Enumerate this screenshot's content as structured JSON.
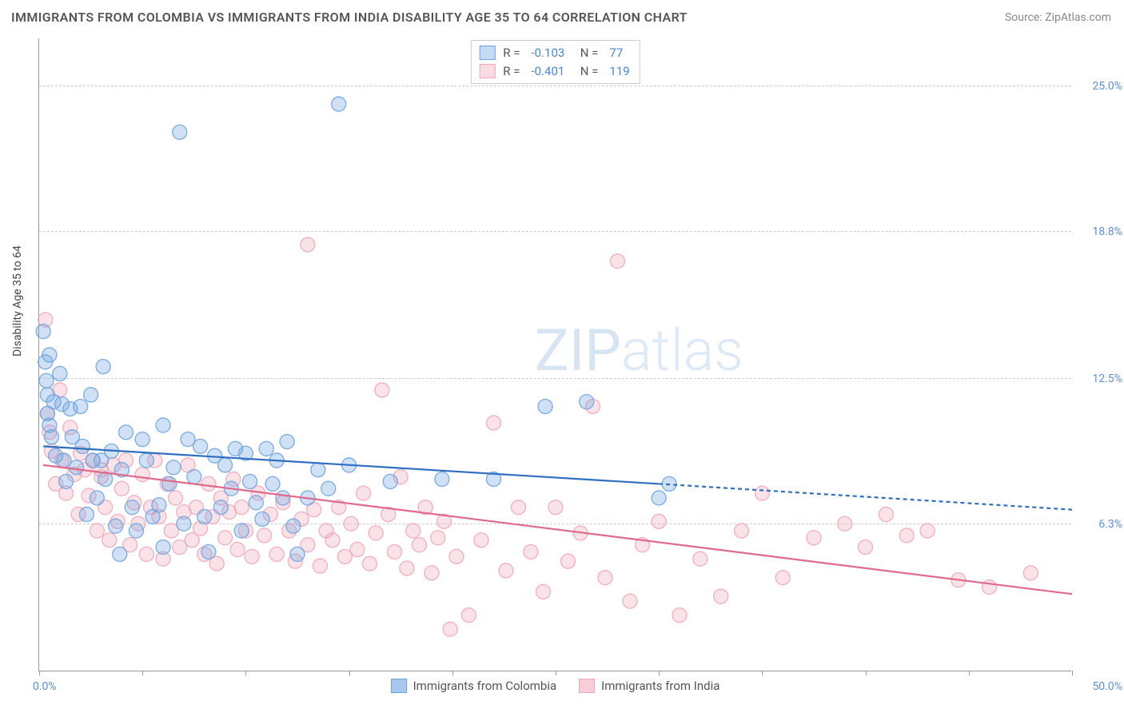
{
  "title": "IMMIGRANTS FROM COLOMBIA VS IMMIGRANTS FROM INDIA DISABILITY AGE 35 TO 64 CORRELATION CHART",
  "source": "Source: ZipAtlas.com",
  "yaxis_title": "Disability Age 35 to 64",
  "watermark_bold": "ZIP",
  "watermark_thin": "atlas",
  "chart": {
    "type": "scatter+regression",
    "background_color": "#ffffff",
    "grid_color": "#cccccc",
    "grid_dash": "4 4",
    "axis_color": "#999999",
    "xlim": [
      0,
      50
    ],
    "ylim": [
      0,
      27
    ],
    "x_axis_labels": {
      "left": "0.0%",
      "right": "50.0%"
    },
    "x_ticks_at": [
      0,
      5,
      10,
      15,
      20,
      25,
      30,
      35,
      40,
      45,
      50
    ],
    "y_ticks": [
      {
        "value": 6.3,
        "label": "6.3%"
      },
      {
        "value": 12.5,
        "label": "12.5%"
      },
      {
        "value": 18.8,
        "label": "18.8%"
      },
      {
        "value": 25.0,
        "label": "25.0%"
      }
    ],
    "tick_label_color": "#5b8fd8",
    "tick_label_fontsize": 14,
    "marker_radius": 9,
    "marker_fill_opacity": 0.32,
    "marker_stroke_opacity": 0.85,
    "marker_stroke_width": 1.4,
    "line_width": 2.2,
    "line_dash_extrap": "5 4",
    "series": [
      {
        "id": "colombia",
        "label": "Immigrants from Colombia",
        "color": "#6ea3e0",
        "line_color": "#2f6fc2",
        "R": "-0.103",
        "N": "77",
        "regression": {
          "x1": 0.2,
          "y1": 9.6,
          "x2": 30,
          "y2": 8.0,
          "extrap_x2": 50,
          "extrap_y2": 6.9
        },
        "points": [
          [
            0.2,
            14.5
          ],
          [
            0.3,
            13.2
          ],
          [
            0.35,
            12.4
          ],
          [
            0.4,
            11.8
          ],
          [
            0.4,
            11.0
          ],
          [
            0.5,
            10.5
          ],
          [
            0.5,
            13.5
          ],
          [
            0.6,
            10.0
          ],
          [
            0.7,
            11.5
          ],
          [
            0.8,
            9.2
          ],
          [
            1.0,
            12.7
          ],
          [
            1.1,
            11.4
          ],
          [
            1.2,
            9.0
          ],
          [
            1.3,
            8.1
          ],
          [
            1.5,
            11.2
          ],
          [
            1.6,
            10.0
          ],
          [
            1.8,
            8.7
          ],
          [
            2.0,
            11.3
          ],
          [
            2.1,
            9.6
          ],
          [
            2.3,
            6.7
          ],
          [
            2.5,
            11.8
          ],
          [
            2.6,
            9.0
          ],
          [
            2.8,
            7.4
          ],
          [
            3.0,
            9.0
          ],
          [
            3.1,
            13.0
          ],
          [
            3.2,
            8.2
          ],
          [
            3.5,
            9.4
          ],
          [
            3.7,
            6.2
          ],
          [
            3.9,
            5.0
          ],
          [
            4.0,
            8.6
          ],
          [
            4.2,
            10.2
          ],
          [
            4.5,
            7.0
          ],
          [
            4.7,
            6.0
          ],
          [
            5.0,
            9.9
          ],
          [
            5.2,
            9.0
          ],
          [
            5.5,
            6.6
          ],
          [
            5.8,
            7.1
          ],
          [
            6.0,
            5.3
          ],
          [
            6.0,
            10.5
          ],
          [
            6.3,
            8.0
          ],
          [
            6.5,
            8.7
          ],
          [
            6.8,
            23.0
          ],
          [
            7.0,
            6.3
          ],
          [
            7.2,
            9.9
          ],
          [
            7.5,
            8.3
          ],
          [
            7.8,
            9.6
          ],
          [
            8.0,
            6.6
          ],
          [
            8.2,
            5.1
          ],
          [
            8.5,
            9.2
          ],
          [
            8.8,
            7.0
          ],
          [
            9.0,
            8.8
          ],
          [
            9.3,
            7.8
          ],
          [
            9.5,
            9.5
          ],
          [
            9.8,
            6.0
          ],
          [
            10.0,
            9.3
          ],
          [
            10.2,
            8.1
          ],
          [
            10.5,
            7.2
          ],
          [
            10.8,
            6.5
          ],
          [
            11.0,
            9.5
          ],
          [
            11.3,
            8.0
          ],
          [
            11.5,
            9.0
          ],
          [
            11.8,
            7.4
          ],
          [
            12.0,
            9.8
          ],
          [
            12.3,
            6.2
          ],
          [
            12.5,
            5.0
          ],
          [
            13.0,
            7.4
          ],
          [
            13.5,
            8.6
          ],
          [
            14.0,
            7.8
          ],
          [
            14.5,
            24.2
          ],
          [
            15.0,
            8.8
          ],
          [
            17.0,
            8.1
          ],
          [
            19.5,
            8.2
          ],
          [
            22.0,
            8.2
          ],
          [
            24.5,
            11.3
          ],
          [
            26.5,
            11.5
          ],
          [
            30.0,
            7.4
          ],
          [
            30.5,
            8.0
          ]
        ]
      },
      {
        "id": "india",
        "label": "Immigrants from India",
        "color": "#f0a7b9",
        "line_color": "#e06a8c",
        "R": "-0.401",
        "N": "119",
        "regression": {
          "x1": 0.2,
          "y1": 8.8,
          "x2": 50,
          "y2": 3.3
        },
        "points": [
          [
            0.3,
            15.0
          ],
          [
            0.4,
            11.0
          ],
          [
            0.5,
            10.2
          ],
          [
            0.6,
            9.4
          ],
          [
            0.8,
            8.0
          ],
          [
            1.0,
            12.0
          ],
          [
            1.1,
            9.0
          ],
          [
            1.3,
            7.6
          ],
          [
            1.5,
            10.4
          ],
          [
            1.7,
            8.4
          ],
          [
            1.9,
            6.7
          ],
          [
            2.0,
            9.3
          ],
          [
            2.2,
            8.6
          ],
          [
            2.4,
            7.5
          ],
          [
            2.6,
            9.0
          ],
          [
            2.8,
            6.0
          ],
          [
            3.0,
            8.3
          ],
          [
            3.0,
            8.6
          ],
          [
            3.2,
            7.0
          ],
          [
            3.4,
            5.6
          ],
          [
            3.6,
            8.8
          ],
          [
            3.8,
            6.4
          ],
          [
            4.0,
            7.8
          ],
          [
            4.2,
            9.0
          ],
          [
            4.4,
            5.4
          ],
          [
            4.6,
            7.2
          ],
          [
            4.8,
            6.3
          ],
          [
            5.0,
            8.4
          ],
          [
            5.2,
            5.0
          ],
          [
            5.4,
            7.0
          ],
          [
            5.6,
            9.0
          ],
          [
            5.8,
            6.6
          ],
          [
            6.0,
            4.8
          ],
          [
            6.2,
            8.0
          ],
          [
            6.4,
            6.0
          ],
          [
            6.6,
            7.4
          ],
          [
            6.8,
            5.3
          ],
          [
            7.0,
            6.8
          ],
          [
            7.2,
            8.8
          ],
          [
            7.4,
            5.6
          ],
          [
            7.6,
            7.0
          ],
          [
            7.8,
            6.1
          ],
          [
            8.0,
            5.0
          ],
          [
            8.2,
            8.0
          ],
          [
            8.4,
            6.6
          ],
          [
            8.6,
            4.6
          ],
          [
            8.8,
            7.4
          ],
          [
            9.0,
            5.7
          ],
          [
            9.2,
            6.8
          ],
          [
            9.4,
            8.2
          ],
          [
            9.6,
            5.2
          ],
          [
            9.8,
            7.0
          ],
          [
            10.0,
            6.0
          ],
          [
            10.3,
            4.9
          ],
          [
            10.6,
            7.6
          ],
          [
            10.9,
            5.8
          ],
          [
            11.2,
            6.7
          ],
          [
            11.5,
            5.0
          ],
          [
            11.8,
            7.2
          ],
          [
            12.1,
            6.0
          ],
          [
            12.4,
            4.7
          ],
          [
            12.7,
            6.5
          ],
          [
            13.0,
            5.4
          ],
          [
            13.3,
            6.9
          ],
          [
            13.6,
            4.5
          ],
          [
            13.9,
            6.0
          ],
          [
            13.0,
            18.2
          ],
          [
            14.2,
            5.6
          ],
          [
            14.5,
            7.0
          ],
          [
            14.8,
            4.9
          ],
          [
            15.1,
            6.3
          ],
          [
            15.4,
            5.2
          ],
          [
            15.7,
            7.6
          ],
          [
            16.0,
            4.6
          ],
          [
            16.3,
            5.9
          ],
          [
            16.6,
            12.0
          ],
          [
            16.9,
            6.7
          ],
          [
            17.2,
            5.1
          ],
          [
            17.5,
            8.3
          ],
          [
            17.8,
            4.4
          ],
          [
            18.1,
            6.0
          ],
          [
            18.4,
            5.4
          ],
          [
            18.7,
            7.0
          ],
          [
            19.0,
            4.2
          ],
          [
            19.3,
            5.7
          ],
          [
            19.6,
            6.4
          ],
          [
            19.9,
            1.8
          ],
          [
            20.2,
            4.9
          ],
          [
            20.8,
            2.4
          ],
          [
            21.4,
            5.6
          ],
          [
            22.0,
            10.6
          ],
          [
            22.6,
            4.3
          ],
          [
            23.2,
            7.0
          ],
          [
            23.8,
            5.1
          ],
          [
            24.4,
            3.4
          ],
          [
            25.0,
            7.0
          ],
          [
            25.6,
            4.7
          ],
          [
            26.2,
            5.9
          ],
          [
            26.8,
            11.3
          ],
          [
            27.4,
            4.0
          ],
          [
            28.0,
            17.5
          ],
          [
            28.6,
            3.0
          ],
          [
            29.2,
            5.4
          ],
          [
            30.0,
            6.4
          ],
          [
            31.0,
            2.4
          ],
          [
            32.0,
            4.8
          ],
          [
            33.0,
            3.2
          ],
          [
            34.0,
            6.0
          ],
          [
            35.0,
            7.6
          ],
          [
            36.0,
            4.0
          ],
          [
            37.5,
            5.7
          ],
          [
            39.0,
            6.3
          ],
          [
            40.0,
            5.3
          ],
          [
            41.0,
            6.7
          ],
          [
            42.0,
            5.8
          ],
          [
            43.0,
            6.0
          ],
          [
            44.5,
            3.9
          ],
          [
            46.0,
            3.6
          ],
          [
            48.0,
            4.2
          ]
        ]
      }
    ]
  },
  "legend_bottom": [
    {
      "label": "Immigrants from Colombia",
      "fill": "#a8c7ec",
      "stroke": "#6ea3e0"
    },
    {
      "label": "Immigrants from India",
      "fill": "#f6cdd8",
      "stroke": "#f0a7b9"
    }
  ]
}
